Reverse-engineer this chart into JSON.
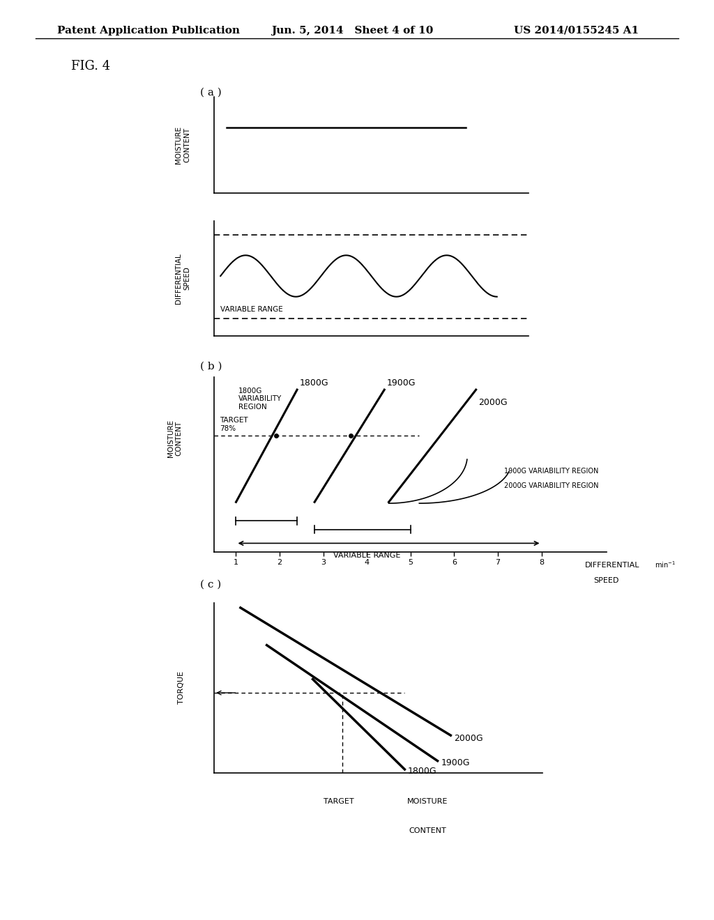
{
  "bg_color": "#ffffff",
  "header_left": "Patent Application Publication",
  "header_mid": "Jun. 5, 2014   Sheet 4 of 10",
  "header_right": "US 2014/0155245 A1",
  "fig_label": "FIG. 4",
  "subplot_a_label": "( a )",
  "subplot_b_label": "( b )",
  "subplot_c_label": "( c )"
}
